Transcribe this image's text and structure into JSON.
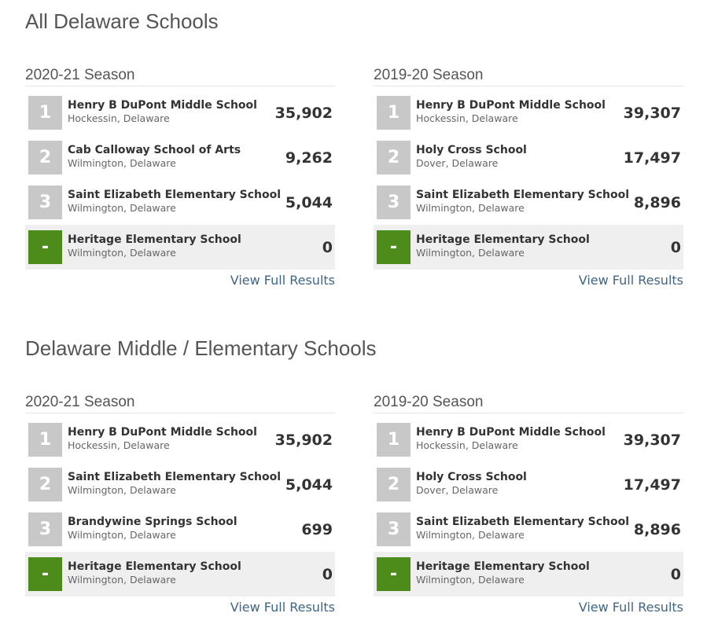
{
  "sections": [
    {
      "title": "All Delaware Schools",
      "boards": [
        {
          "season": "2020-21 Season",
          "rows": [
            {
              "rank": "1",
              "name": "Henry B DuPont Middle School",
              "location": "Hockessin, Delaware",
              "score": "35,902"
            },
            {
              "rank": "2",
              "name": "Cab Calloway School of Arts",
              "location": "Wilmington, Delaware",
              "score": "9,262"
            },
            {
              "rank": "3",
              "name": "Saint Elizabeth Elementary School",
              "location": "Wilmington, Delaware",
              "score": "5,044"
            },
            {
              "rank": "-",
              "name": "Heritage Elementary School",
              "location": "Wilmington, Delaware",
              "score": "0"
            }
          ],
          "link": "View Full Results"
        },
        {
          "season": "2019-20 Season",
          "rows": [
            {
              "rank": "1",
              "name": "Henry B DuPont Middle School",
              "location": "Hockessin, Delaware",
              "score": "39,307"
            },
            {
              "rank": "2",
              "name": "Holy Cross School",
              "location": "Dover, Delaware",
              "score": "17,497"
            },
            {
              "rank": "3",
              "name": "Saint Elizabeth Elementary School",
              "location": "Wilmington, Delaware",
              "score": "8,896"
            },
            {
              "rank": "-",
              "name": "Heritage Elementary School",
              "location": "Wilmington, Delaware",
              "score": "0"
            }
          ],
          "link": "View Full Results"
        }
      ]
    },
    {
      "title": "Delaware Middle / Elementary Schools",
      "boards": [
        {
          "season": "2020-21 Season",
          "rows": [
            {
              "rank": "1",
              "name": "Henry B DuPont Middle School",
              "location": "Hockessin, Delaware",
              "score": "35,902"
            },
            {
              "rank": "2",
              "name": "Saint Elizabeth Elementary School",
              "location": "Wilmington, Delaware",
              "score": "5,044"
            },
            {
              "rank": "3",
              "name": "Brandywine Springs School",
              "location": "Wilmington, Delaware",
              "score": "699"
            },
            {
              "rank": "-",
              "name": "Heritage Elementary School",
              "location": "Wilmington, Delaware",
              "score": "0"
            }
          ],
          "link": "View Full Results"
        },
        {
          "season": "2019-20 Season",
          "rows": [
            {
              "rank": "1",
              "name": "Henry B DuPont Middle School",
              "location": "Hockessin, Delaware",
              "score": "39,307"
            },
            {
              "rank": "2",
              "name": "Holy Cross School",
              "location": "Dover, Delaware",
              "score": "17,497"
            },
            {
              "rank": "3",
              "name": "Saint Elizabeth Elementary School",
              "location": "Wilmington, Delaware",
              "score": "8,896"
            },
            {
              "rank": "-",
              "name": "Heritage Elementary School",
              "location": "Wilmington, Delaware",
              "score": "0"
            }
          ],
          "link": "View Full Results"
        }
      ]
    }
  ],
  "colors": {
    "rank_badge": "#c8c8c8",
    "highlight_badge": "#4d8c1b",
    "highlight_row": "#efefef",
    "link": "#3f6587"
  }
}
